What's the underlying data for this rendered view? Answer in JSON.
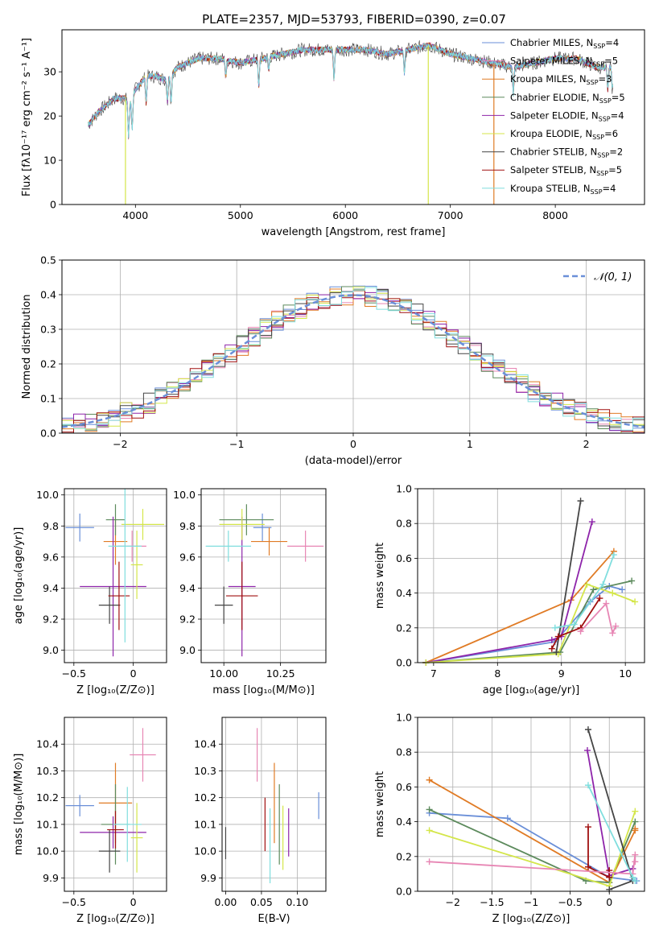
{
  "figure": {
    "title": "PLATE=2357, MJD=53793, FIBERID=0390, z=0.07"
  },
  "colors": {
    "blue": "#6a8fd8",
    "orange": "#e07b25",
    "green": "#5c8a5c",
    "purple": "#8e24aa",
    "lime": "#d4e64a",
    "dark": "#454545",
    "red": "#a01010",
    "pink": "#e786b4",
    "cyan": "#80dede",
    "grid": "#b0b0b0"
  },
  "legend": [
    {
      "label": "Chabrier MILES, N",
      "sub": "SSP",
      "tail": "=4"
    },
    {
      "label": "Salpeter MILES, N",
      "sub": "SSP",
      "tail": "=5"
    },
    {
      "label": "Kroupa MILES, N",
      "sub": "SSP",
      "tail": "=3"
    },
    {
      "label": "Chabrier ELODIE, N",
      "sub": "SSP",
      "tail": "=5"
    },
    {
      "label": "Salpeter ELODIE, N",
      "sub": "SSP",
      "tail": "=4"
    },
    {
      "label": "Kroupa ELODIE, N",
      "sub": "SSP",
      "tail": "=6"
    },
    {
      "label": "Chabrier STELIB, N",
      "sub": "SSP",
      "tail": "=2"
    },
    {
      "label": "Salpeter STELIB, N",
      "sub": "SSP",
      "tail": "=5"
    },
    {
      "label": "Kroupa STELIB, N",
      "sub": "SSP",
      "tail": "=4"
    }
  ],
  "chart_data": [
    {
      "id": "spectrum",
      "type": "line",
      "xlabel": "wavelength [Angstrom, rest frame]",
      "ylabel": "Flux [fλ10⁻¹⁷ erg cm⁻² s⁻¹ A⁻¹]",
      "xlim": [
        3300,
        8850
      ],
      "ylim": [
        0,
        39.5
      ],
      "xticks": [
        4000,
        5000,
        6000,
        7000,
        8000
      ],
      "yticks": [
        0,
        10,
        20,
        30
      ],
      "grid": false,
      "legend_position": "top-right",
      "continuum": {
        "x": [
          3550,
          3650,
          3700,
          3800,
          3900,
          3950,
          4000,
          4100,
          4200,
          4300,
          4400,
          4500,
          4600,
          4800,
          5000,
          5200,
          5400,
          5600,
          5800,
          6000,
          6200,
          6400,
          6600,
          6800,
          7000,
          7200,
          7400,
          7600,
          7800,
          8000,
          8200,
          8400,
          8550
        ],
        "y": [
          18,
          21,
          22,
          24,
          24,
          23,
          26,
          29,
          29,
          28,
          31,
          32,
          33,
          33,
          32,
          33,
          34,
          35,
          35,
          35,
          35,
          34,
          35,
          36,
          34,
          33,
          32,
          31,
          32,
          33,
          33,
          31,
          31
        ]
      },
      "absorption_lines": [
        {
          "x": 3934,
          "depth": 8
        },
        {
          "x": 3969,
          "depth": 7
        },
        {
          "x": 4102,
          "depth": 6
        },
        {
          "x": 4305,
          "depth": 5
        },
        {
          "x": 4340,
          "depth": 6
        },
        {
          "x": 4861,
          "depth": 4
        },
        {
          "x": 5175,
          "depth": 6
        },
        {
          "x": 5270,
          "depth": 3
        },
        {
          "x": 5892,
          "depth": 7
        },
        {
          "x": 6563,
          "depth": 5
        },
        {
          "x": 7600,
          "depth": 6
        },
        {
          "x": 8500,
          "depth": 5
        },
        {
          "x": 8545,
          "depth": 5
        }
      ],
      "spikes": [
        {
          "x": 3905,
          "color": "lime"
        },
        {
          "x": 6790,
          "color": "lime"
        },
        {
          "x": 7415,
          "color": "orange"
        }
      ]
    },
    {
      "id": "residual_histogram",
      "type": "bar",
      "xlabel": "(data-model)/error",
      "ylabel": "Normed distribution",
      "xlim": [
        -2.5,
        2.5
      ],
      "ylim": [
        0,
        0.5
      ],
      "xticks": [
        -2,
        -1,
        0,
        1,
        2
      ],
      "yticks": [
        0,
        0.1,
        0.2,
        0.3,
        0.4,
        0.5
      ],
      "grid": true,
      "legend_position": "top-right",
      "reference_curve": {
        "name": "𝒩(0, 1)",
        "mean": 0,
        "sigma": 1
      },
      "bin_width": 0.1,
      "note": "histogram steps per model follow the reference curve with scatter"
    },
    {
      "id": "age_vs_Z",
      "type": "scatter",
      "xlabel": "Z [log₁₀(Z/Z⊙)]",
      "ylabel": "age  [log₁₀(age/yr)]",
      "xlim": [
        -0.58,
        0.28
      ],
      "ylim": [
        8.92,
        10.04
      ],
      "xticks": [
        -0.5,
        0.0
      ],
      "yticks": [
        9.0,
        9.2,
        9.4,
        9.6,
        9.8,
        10.0
      ],
      "grid": true,
      "points": [
        {
          "color": "blue",
          "x": -0.45,
          "xerr": 0.12,
          "y": 9.79,
          "yerr": 0.09
        },
        {
          "color": "orange",
          "x": -0.15,
          "xerr": 0.1,
          "y": 9.7,
          "yerr": 0.15
        },
        {
          "color": "green",
          "x": -0.15,
          "xerr": 0.08,
          "y": 9.84,
          "yerr": 0.1
        },
        {
          "color": "purple",
          "x": -0.17,
          "xerr": 0.28,
          "y": 9.41,
          "yerr": 0.45
        },
        {
          "color": "lime",
          "x": 0.08,
          "xerr": 0.18,
          "y": 9.81,
          "yerr": 0.1
        },
        {
          "color": "lime",
          "x": 0.03,
          "xerr": 0.05,
          "y": 9.55,
          "yerr": 0.22
        },
        {
          "color": "dark",
          "x": -0.2,
          "xerr": 0.09,
          "y": 9.29,
          "yerr": 0.12
        },
        {
          "color": "red",
          "x": -0.12,
          "xerr": 0.09,
          "y": 9.35,
          "yerr": 0.22
        },
        {
          "color": "pink",
          "x": -0.01,
          "xerr": 0.12,
          "y": 9.67,
          "yerr": 0.1
        },
        {
          "color": "cyan",
          "x": -0.07,
          "xerr": 0.14,
          "y": 9.67,
          "yerr": 0.62
        }
      ]
    },
    {
      "id": "age_vs_mass",
      "type": "scatter",
      "xlabel": "mass [log₁₀(M/M⊙)]",
      "xlim": [
        9.9,
        10.45
      ],
      "ylim": [
        8.92,
        10.04
      ],
      "xticks": [
        10.0,
        10.25
      ],
      "xticklabels": [
        "10.00",
        "10.25"
      ],
      "yticks": [
        9.0,
        9.2,
        9.4,
        9.6,
        9.8,
        10.0
      ],
      "grid": true,
      "points": [
        {
          "color": "blue",
          "x": 10.17,
          "xerr": 0.04,
          "y": 9.79,
          "yerr": 0.09
        },
        {
          "color": "orange",
          "x": 10.2,
          "xerr": 0.08,
          "y": 9.7,
          "yerr": 0.09
        },
        {
          "color": "green",
          "x": 10.1,
          "xerr": 0.12,
          "y": 9.84,
          "yerr": 0.1
        },
        {
          "color": "purple",
          "x": 10.08,
          "xerr": 0.06,
          "y": 9.41,
          "yerr": 0.45
        },
        {
          "color": "lime",
          "x": 10.08,
          "xerr": 0.1,
          "y": 9.81,
          "yerr": 0.1
        },
        {
          "color": "dark",
          "x": 10.0,
          "xerr": 0.04,
          "y": 9.29,
          "yerr": 0.12
        },
        {
          "color": "red",
          "x": 10.08,
          "xerr": 0.07,
          "y": 9.35,
          "yerr": 0.22
        },
        {
          "color": "pink",
          "x": 10.36,
          "xerr": 0.08,
          "y": 9.67,
          "yerr": 0.1
        },
        {
          "color": "cyan",
          "x": 10.02,
          "xerr": 0.1,
          "y": 9.67,
          "yerr": 0.1
        }
      ]
    },
    {
      "id": "mass_weight_vs_age",
      "type": "line",
      "xlabel": "age  [log₁₀(age/yr)]",
      "ylabel": "mass weight",
      "xlim": [
        6.75,
        10.3
      ],
      "ylim": [
        0,
        1.0
      ],
      "xticks": [
        7,
        8,
        9,
        10
      ],
      "yticks": [
        0,
        0.2,
        0.4,
        0.6,
        0.8,
        1.0
      ],
      "grid": true,
      "series": [
        {
          "color": "blue",
          "x": [
            6.88,
            8.9,
            9.45,
            9.75,
            9.95
          ],
          "y": [
            0.0,
            0.12,
            0.35,
            0.44,
            0.42
          ]
        },
        {
          "color": "orange",
          "x": [
            6.88,
            9.15,
            9.82
          ],
          "y": [
            0.0,
            0.36,
            0.64
          ]
        },
        {
          "color": "green",
          "x": [
            6.88,
            8.98,
            9.5,
            10.1
          ],
          "y": [
            0.0,
            0.06,
            0.42,
            0.47
          ]
        },
        {
          "color": "purple",
          "x": [
            6.88,
            8.85,
            9.0,
            9.48
          ],
          "y": [
            0.0,
            0.13,
            0.15,
            0.81
          ]
        },
        {
          "color": "lime",
          "x": [
            6.88,
            8.95,
            9.4,
            9.8,
            10.15
          ],
          "y": [
            0.0,
            0.05,
            0.45,
            0.4,
            0.35
          ]
        },
        {
          "color": "dark",
          "x": [
            8.92,
            9.3
          ],
          "y": [
            0.06,
            0.93
          ]
        },
        {
          "color": "red",
          "x": [
            8.85,
            8.95,
            9.3,
            9.6
          ],
          "y": [
            0.08,
            0.15,
            0.2,
            0.37
          ]
        },
        {
          "color": "pink",
          "x": [
            9.3,
            9.7,
            9.8,
            9.85
          ],
          "y": [
            0.18,
            0.34,
            0.17,
            0.21
          ]
        },
        {
          "color": "cyan",
          "x": [
            8.9,
            9.2,
            9.65,
            9.82
          ],
          "y": [
            0.2,
            0.22,
            0.45,
            0.62
          ]
        }
      ]
    },
    {
      "id": "mass_vs_Z",
      "type": "scatter",
      "xlabel": "Z [log₁₀(Z/Z⊙)]",
      "ylabel": "mass [log₁₀(M/M⊙)]",
      "xlim": [
        -0.58,
        0.28
      ],
      "ylim": [
        9.85,
        10.5
      ],
      "xticks": [
        -0.5,
        0.0
      ],
      "yticks": [
        9.9,
        10.0,
        10.1,
        10.2,
        10.3,
        10.4
      ],
      "grid": true,
      "points": [
        {
          "color": "blue",
          "x": -0.45,
          "xerr": 0.12,
          "y": 10.17,
          "yerr": 0.04
        },
        {
          "color": "orange",
          "x": -0.15,
          "xerr": 0.14,
          "y": 10.18,
          "yerr": 0.15
        },
        {
          "color": "green",
          "x": -0.15,
          "xerr": 0.12,
          "y": 10.1,
          "yerr": 0.15
        },
        {
          "color": "purple",
          "x": -0.17,
          "xerr": 0.28,
          "y": 10.07,
          "yerr": 0.06
        },
        {
          "color": "lime",
          "x": 0.03,
          "xerr": 0.05,
          "y": 10.05,
          "yerr": 0.13
        },
        {
          "color": "dark",
          "x": -0.2,
          "xerr": 0.09,
          "y": 10.0,
          "yerr": 0.08
        },
        {
          "color": "red",
          "x": -0.15,
          "xerr": 0.07,
          "y": 10.08,
          "yerr": 0.07
        },
        {
          "color": "pink",
          "x": 0.08,
          "xerr": 0.11,
          "y": 10.36,
          "yerr": 0.1
        },
        {
          "color": "cyan",
          "x": -0.05,
          "xerr": 0.12,
          "y": 10.1,
          "yerr": 0.14
        }
      ]
    },
    {
      "id": "mass_vs_ebv",
      "type": "scatter",
      "xlabel": "E(B-V)",
      "xlim": [
        -0.005,
        0.14
      ],
      "ylim": [
        9.85,
        10.5
      ],
      "xticks": [
        0.0,
        0.05,
        0.1
      ],
      "xticklabels": [
        "0.00",
        "0.05",
        "0.10"
      ],
      "yticks": [
        9.9,
        10.0,
        10.1,
        10.2,
        10.3,
        10.4
      ],
      "grid": true,
      "points": [
        {
          "color": "blue",
          "x": 0.13,
          "y": 10.17,
          "yerr": 0.05
        },
        {
          "color": "orange",
          "x": 0.068,
          "y": 10.18,
          "yerr": 0.15
        },
        {
          "color": "green",
          "x": 0.075,
          "y": 10.1,
          "yerr": 0.15
        },
        {
          "color": "purple",
          "x": 0.088,
          "y": 10.07,
          "yerr": 0.09
        },
        {
          "color": "lime",
          "x": 0.08,
          "y": 10.05,
          "yerr": 0.12
        },
        {
          "color": "dark",
          "x": 0.0,
          "y": 10.03,
          "yerr": 0.06
        },
        {
          "color": "red",
          "x": 0.055,
          "y": 10.1,
          "yerr": 0.1
        },
        {
          "color": "pink",
          "x": 0.044,
          "y": 10.36,
          "yerr": 0.1
        },
        {
          "color": "cyan",
          "x": 0.062,
          "y": 10.02,
          "yerr": 0.14
        }
      ]
    },
    {
      "id": "mass_weight_vs_Z",
      "type": "line",
      "xlabel": "Z [log₁₀(Z/Z⊙)]",
      "ylabel": "mass weight",
      "xlim": [
        -2.45,
        0.45
      ],
      "ylim": [
        0,
        1.0
      ],
      "xticks": [
        -2.0,
        -1.5,
        -1.0,
        -0.5,
        0.0
      ],
      "yticks": [
        0,
        0.2,
        0.4,
        0.6,
        0.8,
        1.0
      ],
      "grid": true,
      "series": [
        {
          "color": "blue",
          "x": [
            -2.3,
            -1.3,
            0.0,
            0.35
          ],
          "y": [
            0.45,
            0.42,
            0.08,
            0.06
          ]
        },
        {
          "color": "orange",
          "x": [
            -2.3,
            0.0,
            0.33,
            0.33
          ],
          "y": [
            0.64,
            0.05,
            0.35,
            0.36
          ]
        },
        {
          "color": "green",
          "x": [
            -2.3,
            -0.3,
            0.0,
            0.33
          ],
          "y": [
            0.47,
            0.06,
            0.05,
            0.4
          ]
        },
        {
          "color": "purple",
          "x": [
            -0.28,
            0.0,
            0.3
          ],
          "y": [
            0.81,
            0.09,
            0.13
          ]
        },
        {
          "color": "lime",
          "x": [
            -2.3,
            0.0,
            0.33
          ],
          "y": [
            0.35,
            0.03,
            0.46
          ]
        },
        {
          "color": "dark",
          "x": [
            -0.27,
            0.3,
            0.0
          ],
          "y": [
            0.93,
            0.06,
            0.01
          ]
        },
        {
          "color": "red",
          "x": [
            -0.27,
            -0.27,
            0.0,
            0.0
          ],
          "y": [
            0.37,
            0.14,
            0.08,
            0.12
          ]
        },
        {
          "color": "pink",
          "x": [
            -2.3,
            0.3,
            0.33,
            0.33
          ],
          "y": [
            0.17,
            0.1,
            0.21,
            0.17
          ]
        },
        {
          "color": "cyan",
          "x": [
            -0.27,
            0.3,
            0.33
          ],
          "y": [
            0.61,
            0.08,
            0.06
          ]
        }
      ]
    }
  ]
}
